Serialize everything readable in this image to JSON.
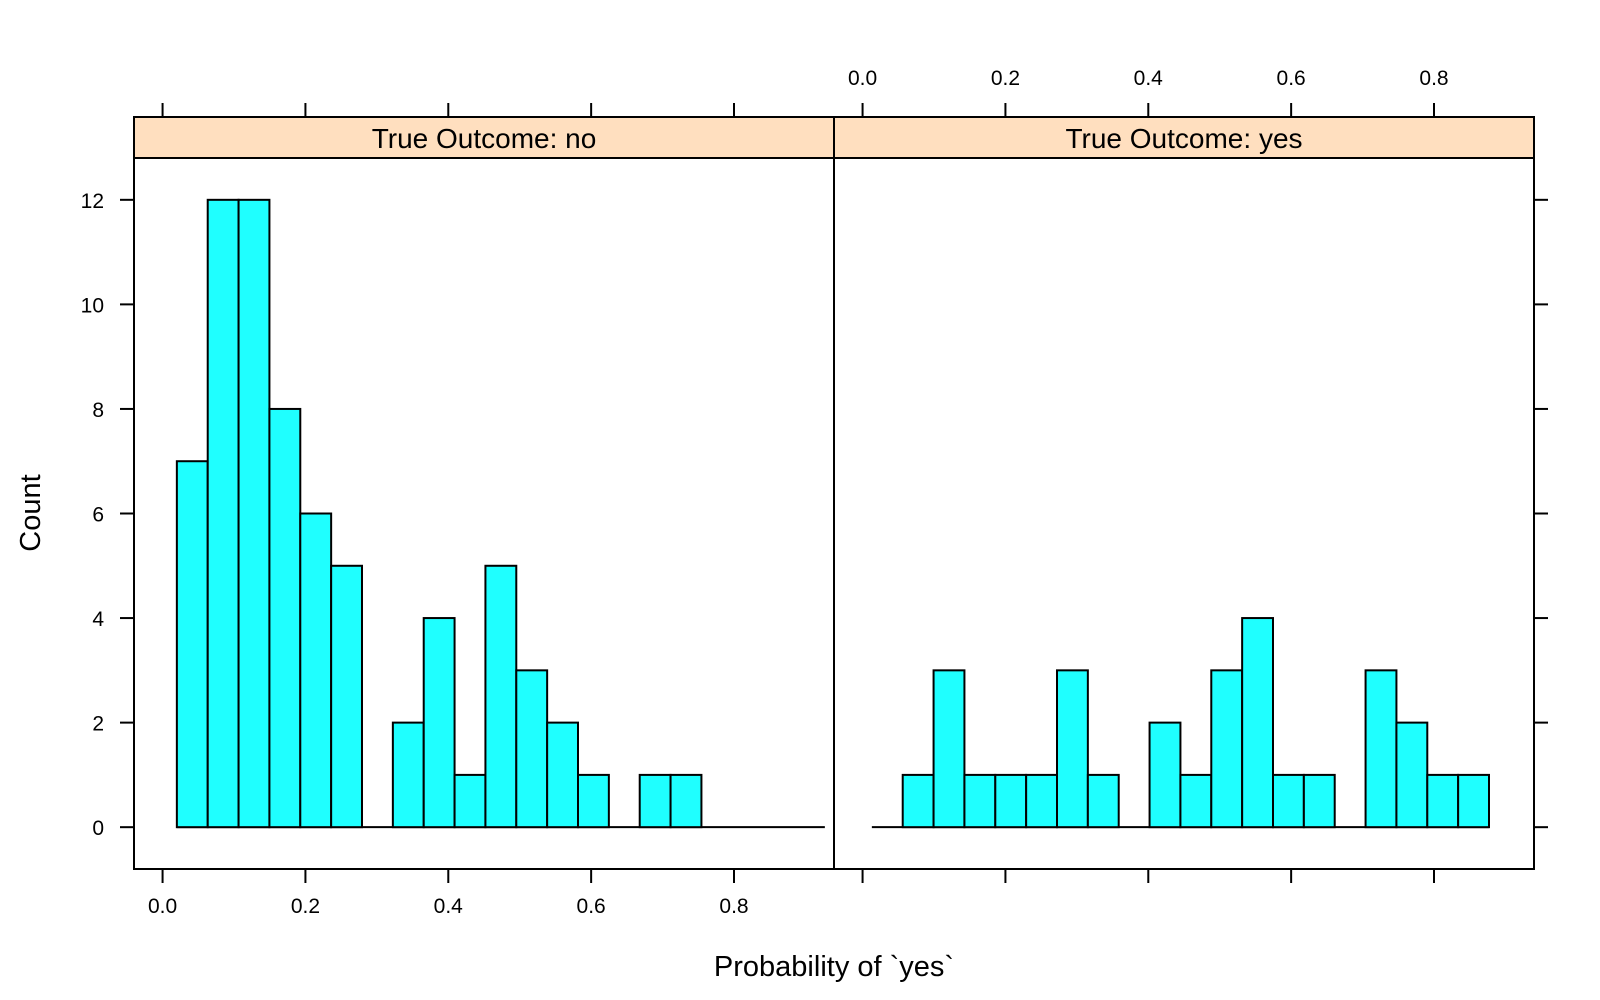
{
  "chart_data": {
    "type": "bar",
    "xlabel": "Probability of `yes`",
    "ylabel": "Count",
    "xlim": [
      -0.04,
      0.94
    ],
    "ylim": [
      -0.8,
      12.8
    ],
    "bin_width": 0.0432,
    "x_ticks": [
      "0.0",
      "0.2",
      "0.4",
      "0.6",
      "0.8"
    ],
    "x_tick_values": [
      0.0,
      0.2,
      0.4,
      0.6,
      0.8
    ],
    "y_ticks": [
      "0",
      "2",
      "4",
      "6",
      "8",
      "10",
      "12"
    ],
    "y_tick_values": [
      0,
      2,
      4,
      6,
      8,
      10,
      12
    ],
    "strip_color": "#ffdfbf",
    "bar_color": "#1fffff",
    "panels": [
      {
        "strip_label": "True Outcome: no",
        "bins_start": 0.02,
        "counts": [
          7,
          12,
          12,
          8,
          6,
          5,
          0,
          2,
          4,
          1,
          5,
          3,
          2,
          1,
          0,
          1,
          1,
          0,
          0,
          0,
          0
        ]
      },
      {
        "strip_label": "True Outcome: yes",
        "bins_start": 0.013,
        "counts": [
          0,
          1,
          3,
          1,
          1,
          1,
          3,
          1,
          0,
          2,
          1,
          3,
          4,
          1,
          1,
          0,
          3,
          2,
          1,
          1
        ]
      }
    ]
  }
}
